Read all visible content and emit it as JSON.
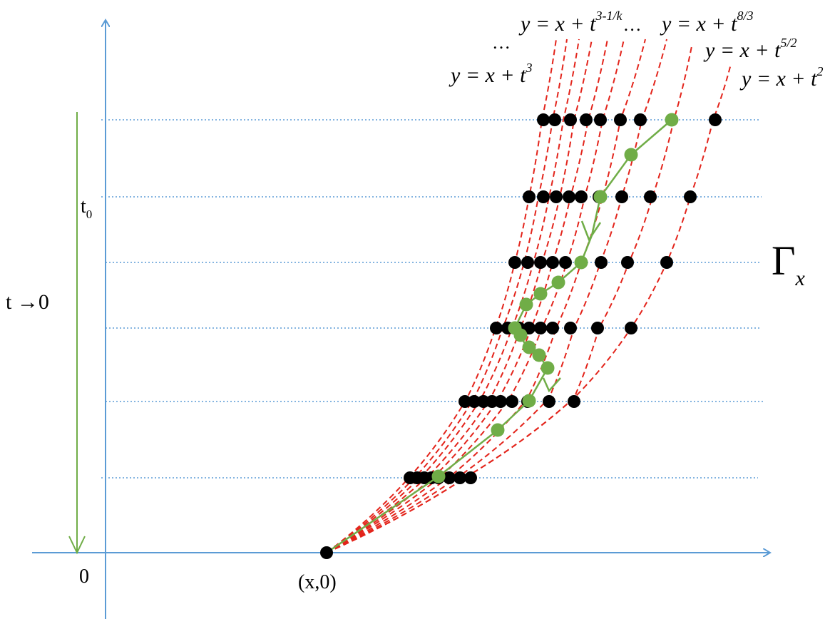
{
  "colors": {
    "axis": "#5b9bd5",
    "curve": "#e3241b",
    "path": "#70ad47",
    "point": "#000000",
    "level_line": "#5b9bd5"
  },
  "labels": {
    "origin_point": "(x,0)",
    "zero": "0",
    "t0": "t",
    "t0_sub": "0",
    "t_limit": "t →0",
    "gamma": "Γ",
    "gamma_sub": "x",
    "dots_left": "…",
    "eq_t3": {
      "lhs": "y = x + t",
      "exp": "3"
    },
    "eq_t3k": {
      "lhs": "y = x + t",
      "exp": "3-1/k",
      "trail": "…"
    },
    "eq_t83": {
      "lhs": "y = x + t",
      "exp": "8/3"
    },
    "eq_t52": {
      "lhs": "y = x + t",
      "exp": "5/2"
    },
    "eq_t2": {
      "lhs": "y = x + t",
      "exp": "2"
    }
  }
}
